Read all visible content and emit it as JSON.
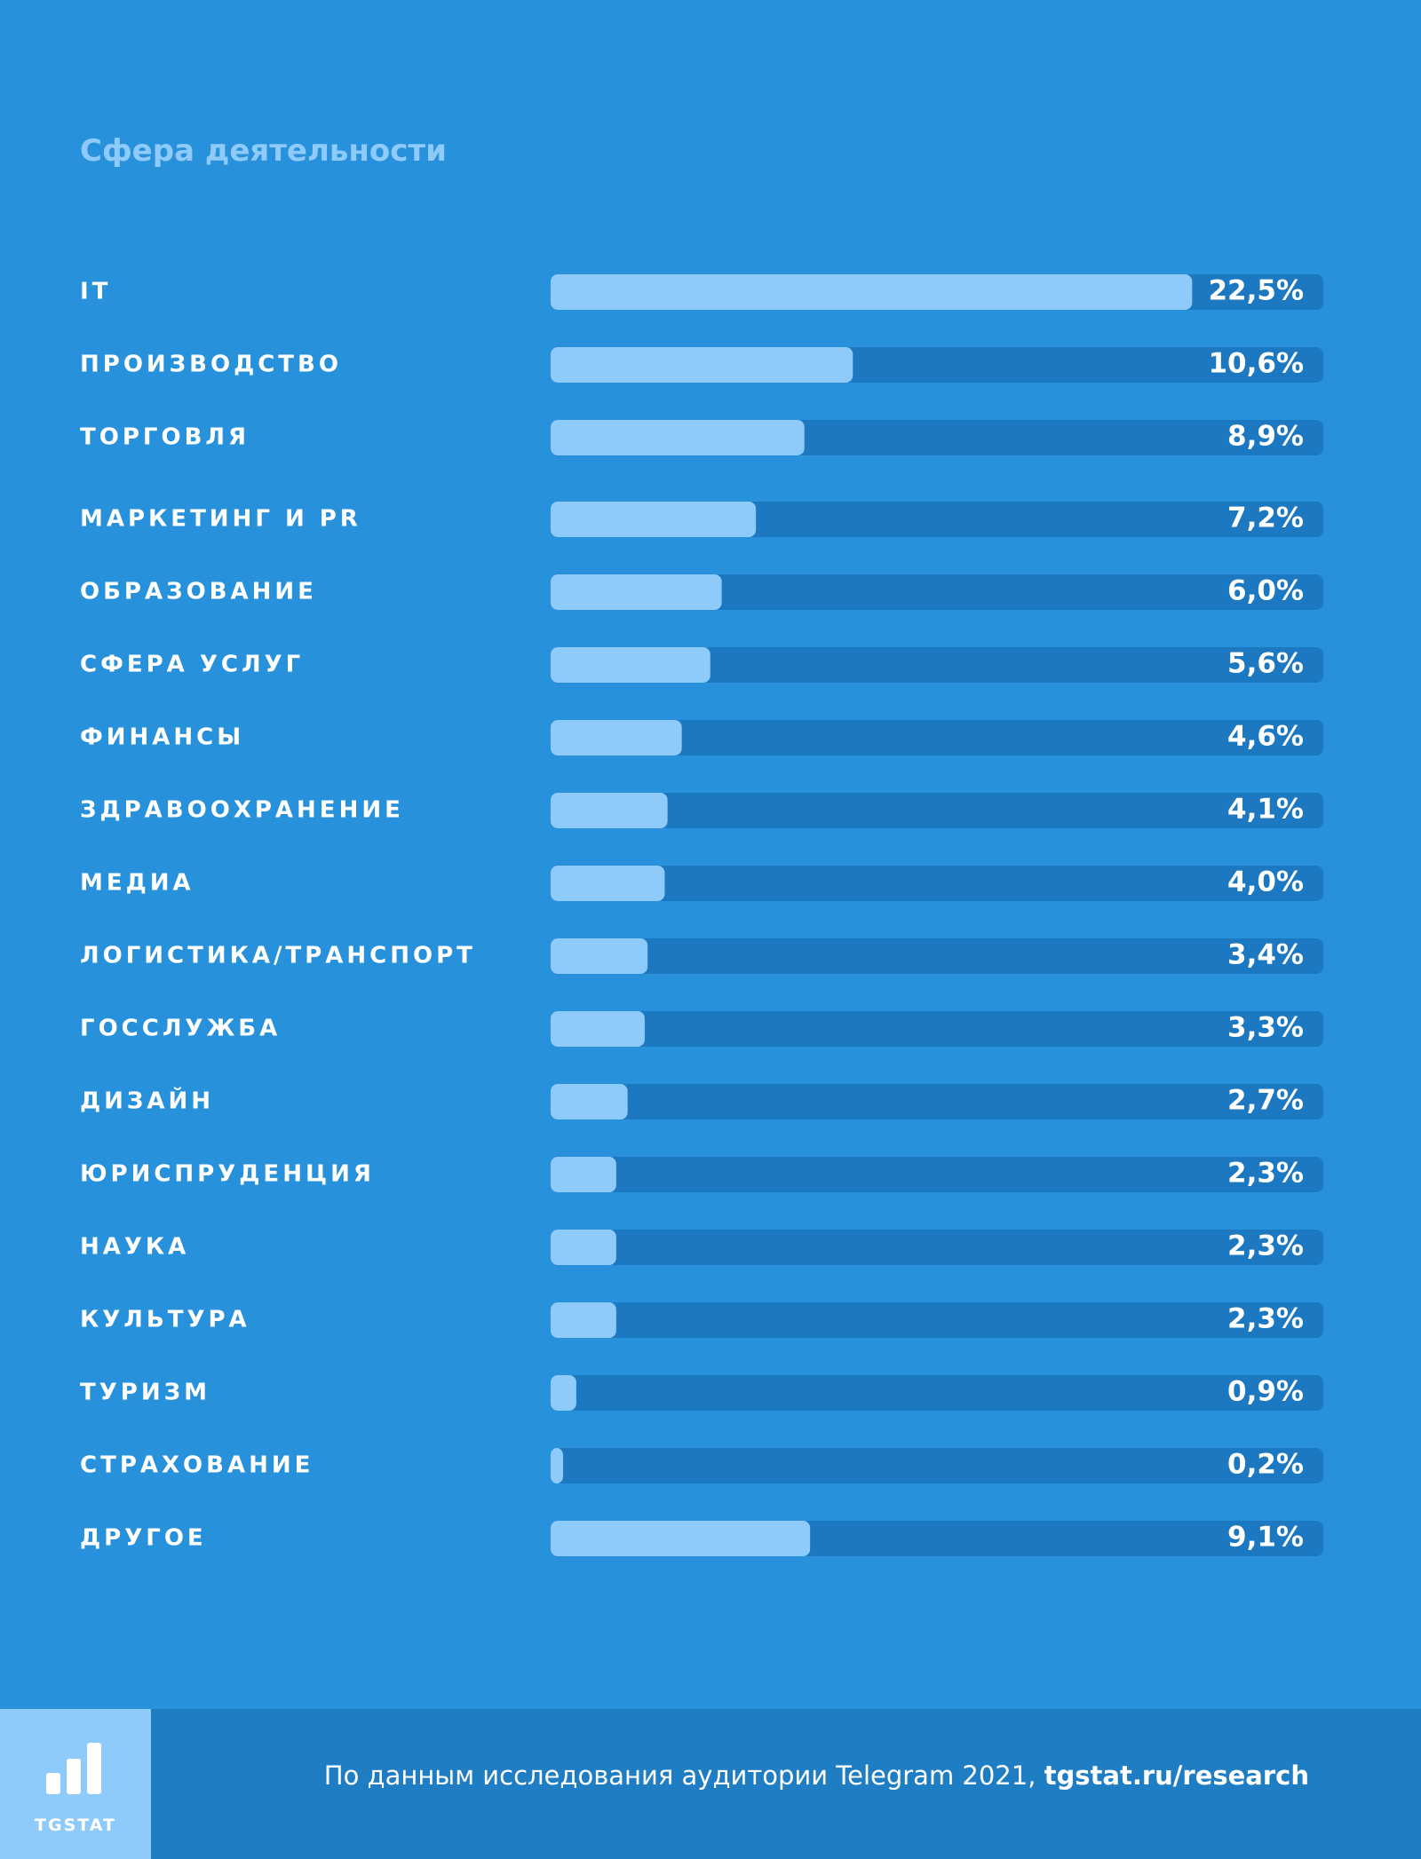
{
  "colors": {
    "background": "#2891db",
    "title": "#8ecbfa",
    "bar_track": "#1c78c1",
    "bar_fill": "#8ecbfa",
    "footer": "#1f7dc4",
    "logo_box": "#8ecbfa",
    "text": "#ffffff"
  },
  "chart_data": {
    "type": "bar",
    "orientation": "horizontal",
    "title": "Сфера деятельности",
    "xlim": [
      0,
      27.1
    ],
    "categories": [
      "IT",
      "ПРОИЗВОДСТВО",
      "ТОРГОВЛЯ",
      "МАРКЕТИНГ И PR",
      "ОБРАЗОВАНИЕ",
      "СФЕРА УСЛУГ",
      "ФИНАНСЫ",
      "ЗДРАВООХРАНЕНИЕ",
      "МЕДИА",
      "ЛОГИСТИКА/ТРАНСПОРТ",
      "ГОССЛУЖБА",
      "ДИЗАЙН",
      "ЮРИСПРУДЕНЦИЯ",
      "НАУКА",
      "КУЛЬТУРА",
      "ТУРИЗМ",
      "СТРАХОВАНИЕ",
      "ДРУГОЕ"
    ],
    "values": [
      22.5,
      10.6,
      8.9,
      7.2,
      6.0,
      5.6,
      4.6,
      4.1,
      4.0,
      3.4,
      3.3,
      2.7,
      2.3,
      2.3,
      2.3,
      0.9,
      0.2,
      9.1
    ],
    "value_labels": [
      "22,5%",
      "10,6%",
      "8,9%",
      "7,2%",
      "6,0%",
      "5,6%",
      "4,6%",
      "4,1%",
      "4,0%",
      "3,4%",
      "3,3%",
      "2,7%",
      "2,3%",
      "2,3%",
      "2,3%",
      "0,9%",
      "0,2%",
      "9,1%"
    ],
    "grid": false,
    "legend": "none"
  },
  "footer": {
    "logo_text": "TGSTAT",
    "source_text": "По данным исследования аудитории Telegram 2021, ",
    "source_link": "tgstat.ru/research"
  }
}
